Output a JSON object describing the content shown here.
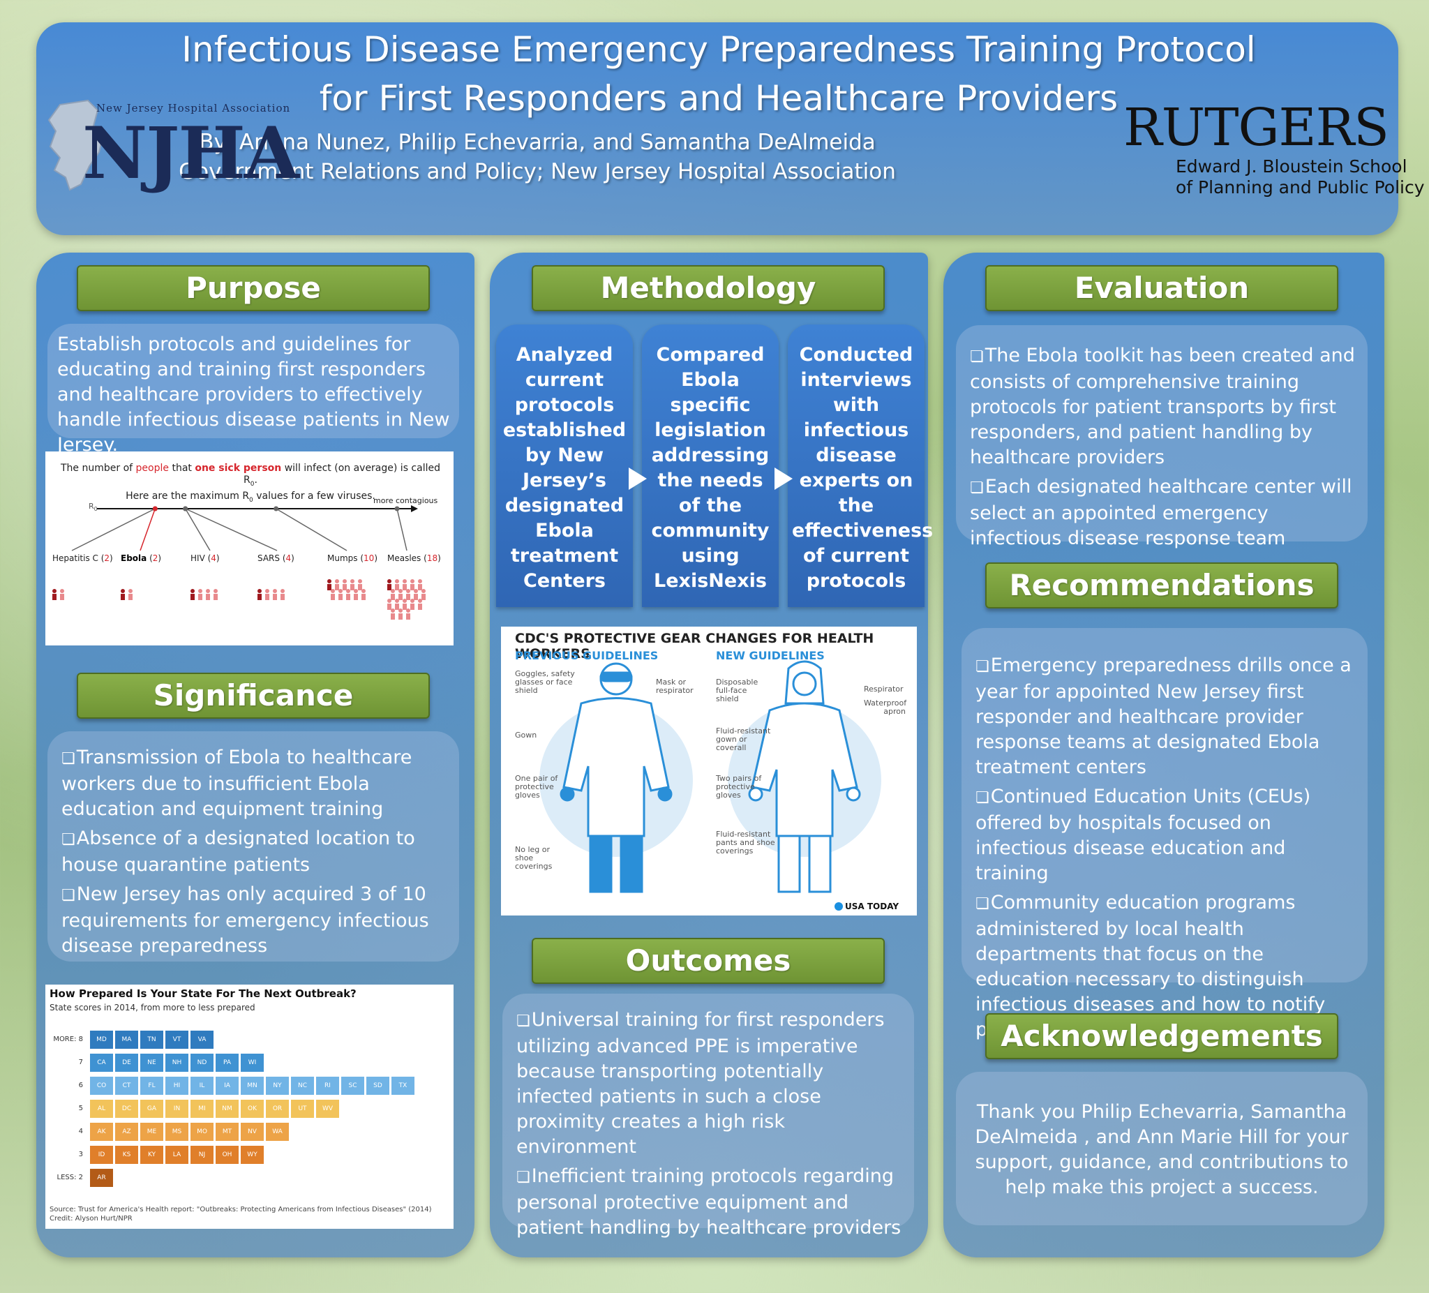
{
  "header": {
    "title_line1": "Infectious Disease Emergency Preparedness Training Protocol",
    "title_line2": "for First Responders and Healthcare Providers",
    "authors": "By: Ariana Nunez, Philip Echevarria, and Samantha DeAlmeida",
    "affiliation": "Government Relations and Policy; New Jersey Hospital Association",
    "logo_left_small": "New Jersey Hospital Association",
    "logo_left_big": "NJHA",
    "logo_right": "RUTGERS",
    "school_line1": "Edward J. Bloustein School",
    "school_line2": "of Planning and Public Policy"
  },
  "purpose": {
    "heading": "Purpose",
    "text": "Establish protocols and guidelines for educating and training first responders and healthcare providers to effectively handle infectious disease patients in New Jersey."
  },
  "r0_figure": {
    "line1_a": "The number of ",
    "line1_people": "people",
    "line1_b": " that ",
    "line1_sick": "one sick person",
    "line1_c": " will infect (on average) is called R",
    "line2": "Here are the maximum R",
    "line2_b": " values for a few viruses.",
    "axis_label": "R",
    "more_contagious": "more contagious",
    "viruses": [
      {
        "name": "Hepatitis C",
        "value": "2",
        "people": 2
      },
      {
        "name": "Ebola",
        "value": "2",
        "people": 2
      },
      {
        "name": "HIV",
        "value": "4",
        "people": 4
      },
      {
        "name": "SARS",
        "value": "4",
        "people": 4
      },
      {
        "name": "Mumps",
        "value": "10",
        "people": 10
      },
      {
        "name": "Measles",
        "value": "18",
        "people": 18
      }
    ]
  },
  "significance": {
    "heading": "Significance",
    "items": [
      "Transmission of Ebola to healthcare workers due to insufficient Ebola education and equipment training",
      "Absence of a designated location to house quarantine patients",
      "New Jersey has only acquired 3 of 10 requirements for emergency infectious disease preparedness"
    ]
  },
  "states_table": {
    "title": "How Prepared Is Your State For The Next Outbreak?",
    "subtitle": "State scores in 2014, from more to less prepared",
    "rows": [
      {
        "label": "MORE: 8",
        "color": "#2f7bbf",
        "states": [
          "MD",
          "MA",
          "TN",
          "VT",
          "VA"
        ]
      },
      {
        "label": "7",
        "color": "#3f92d2",
        "states": [
          "CA",
          "DE",
          "NE",
          "NH",
          "ND",
          "PA",
          "WI"
        ]
      },
      {
        "label": "6",
        "color": "#71b4e6",
        "states": [
          "CO",
          "CT",
          "FL",
          "HI",
          "IL",
          "IA",
          "MN",
          "NY",
          "NC",
          "RI",
          "SC",
          "SD",
          "TX"
        ]
      },
      {
        "label": "5",
        "color": "#f2c35a",
        "states": [
          "AL",
          "DC",
          "GA",
          "IN",
          "MI",
          "NM",
          "OK",
          "OR",
          "UT",
          "WV"
        ]
      },
      {
        "label": "4",
        "color": "#eda347",
        "states": [
          "AK",
          "AZ",
          "ME",
          "MS",
          "MO",
          "MT",
          "NV",
          "WA"
        ]
      },
      {
        "label": "3",
        "color": "#e07f2a",
        "states": [
          "ID",
          "KS",
          "KY",
          "LA",
          "NJ",
          "OH",
          "WY"
        ]
      },
      {
        "label": "LESS: 2",
        "color": "#b35b17",
        "states": [
          "AR"
        ]
      }
    ],
    "source": "Source: Trust for America's Health report: \"Outbreaks: Protecting Americans from Infectious Diseases\" (2014)",
    "credit": "Credit: Alyson Hurt/NPR"
  },
  "methodology": {
    "heading": "Methodology",
    "steps": [
      "Analyzed current protocols established by New Jersey’s designated Ebola treatment Centers",
      "Compared Ebola specific legislation addressing the needs of the community using LexisNexis",
      "Conducted interviews with infectious disease experts on the effectiveness of current protocols"
    ]
  },
  "cdc_figure": {
    "title": "CDC'S PROTECTIVE GEAR CHANGES FOR HEALTH WORKERS",
    "prev_heading": "PREVIOUS GUIDELINES",
    "new_heading": "NEW GUIDELINES",
    "prev_labels": [
      "Goggles, safety glasses or face shield",
      "Mask or respirator",
      "Gown",
      "One pair of protective gloves",
      "No leg or shoe coverings"
    ],
    "new_labels": [
      "Disposable full-face shield",
      "Respirator",
      "Waterproof apron",
      "Fluid-resistant gown or coverall",
      "Two pairs of protective gloves",
      "Fluid-resistant pants and shoe coverings"
    ],
    "credit": "USA TODAY"
  },
  "outcomes": {
    "heading": "Outcomes",
    "items": [
      "Universal training for first responders utilizing advanced PPE  is imperative because transporting potentially infected patients in such a close proximity creates a high risk environment",
      "Inefficient training protocols regarding personal protective equipment and patient handling by healthcare providers"
    ]
  },
  "evaluation": {
    "heading": "Evaluation",
    "items": [
      "The Ebola toolkit has been created and consists of comprehensive training protocols for patient transports by first responders, and patient handling by healthcare providers",
      "Each designated healthcare center will select an appointed emergency infectious disease response team"
    ]
  },
  "recommendations": {
    "heading": "Recommendations",
    "items": [
      "Emergency preparedness drills once a year for appointed New Jersey first responder and healthcare provider response teams at designated Ebola treatment centers",
      "Continued Education Units (CEUs) offered by hospitals focused on infectious disease education and training",
      "Community education programs administered by local health departments that focus on the education necessary to distinguish infectious diseases and  how to notify proper authorities"
    ]
  },
  "acknowledgements": {
    "heading": "Acknowledgements",
    "text": "Thank you Philip Echevarria, Samantha DeAlmeida , and Ann Marie Hill for your support, guidance, and contributions to help make this project a success."
  }
}
